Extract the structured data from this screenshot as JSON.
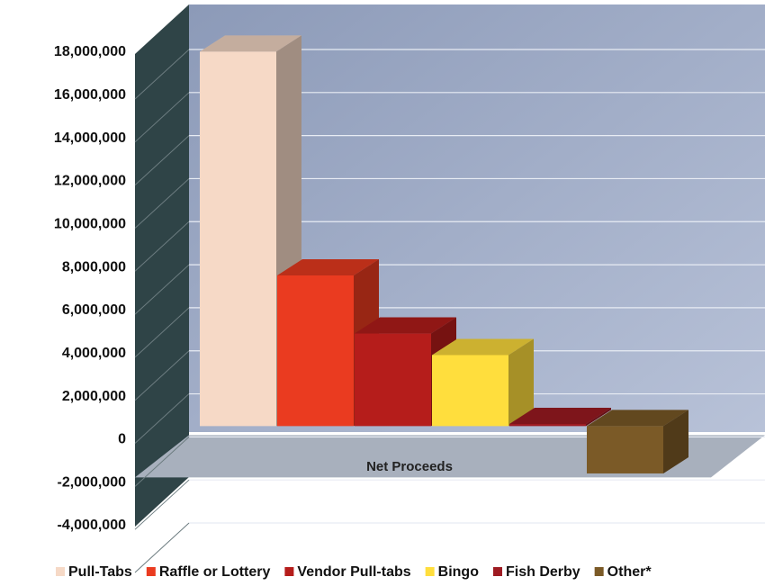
{
  "chart_data": {
    "type": "bar3d",
    "categories": [
      "Net Proceeds"
    ],
    "series": [
      {
        "name": "Pull-Tabs",
        "color": "#f6d9c6",
        "values": [
          17400000
        ]
      },
      {
        "name": "Raffle or Lottery",
        "color": "#ea3b20",
        "values": [
          7000000
        ]
      },
      {
        "name": "Vendor Pull-tabs",
        "color": "#b51d1b",
        "values": [
          4300000
        ]
      },
      {
        "name": "Bingo",
        "color": "#ffde3d",
        "values": [
          3300000
        ]
      },
      {
        "name": "Fish Derby",
        "color": "#9e1b22",
        "values": [
          100000
        ]
      },
      {
        "name": "Other*",
        "color": "#7b5a27",
        "values": [
          -2200000
        ]
      }
    ],
    "ylim": [
      -4000000,
      18000000
    ],
    "yticks": [
      {
        "value": -4000000,
        "label": "-4,000,000"
      },
      {
        "value": -2000000,
        "label": "-2,000,000"
      },
      0,
      {
        "value": 2000000,
        "label": "2,000,000"
      },
      {
        "value": 4000000,
        "label": "4,000,000"
      },
      {
        "value": 6000000,
        "label": "6,000,000"
      },
      {
        "value": 8000000,
        "label": "8,000,000"
      },
      {
        "value": 10000000,
        "label": "10,000,000"
      },
      {
        "value": 12000000,
        "label": "12,000,000"
      },
      {
        "value": 14000000,
        "label": "14,000,000"
      },
      {
        "value": 16000000,
        "label": "16,000,000"
      },
      {
        "value": 18000000,
        "label": "18,000,000"
      }
    ],
    "grid": true,
    "legend": "bottom"
  }
}
